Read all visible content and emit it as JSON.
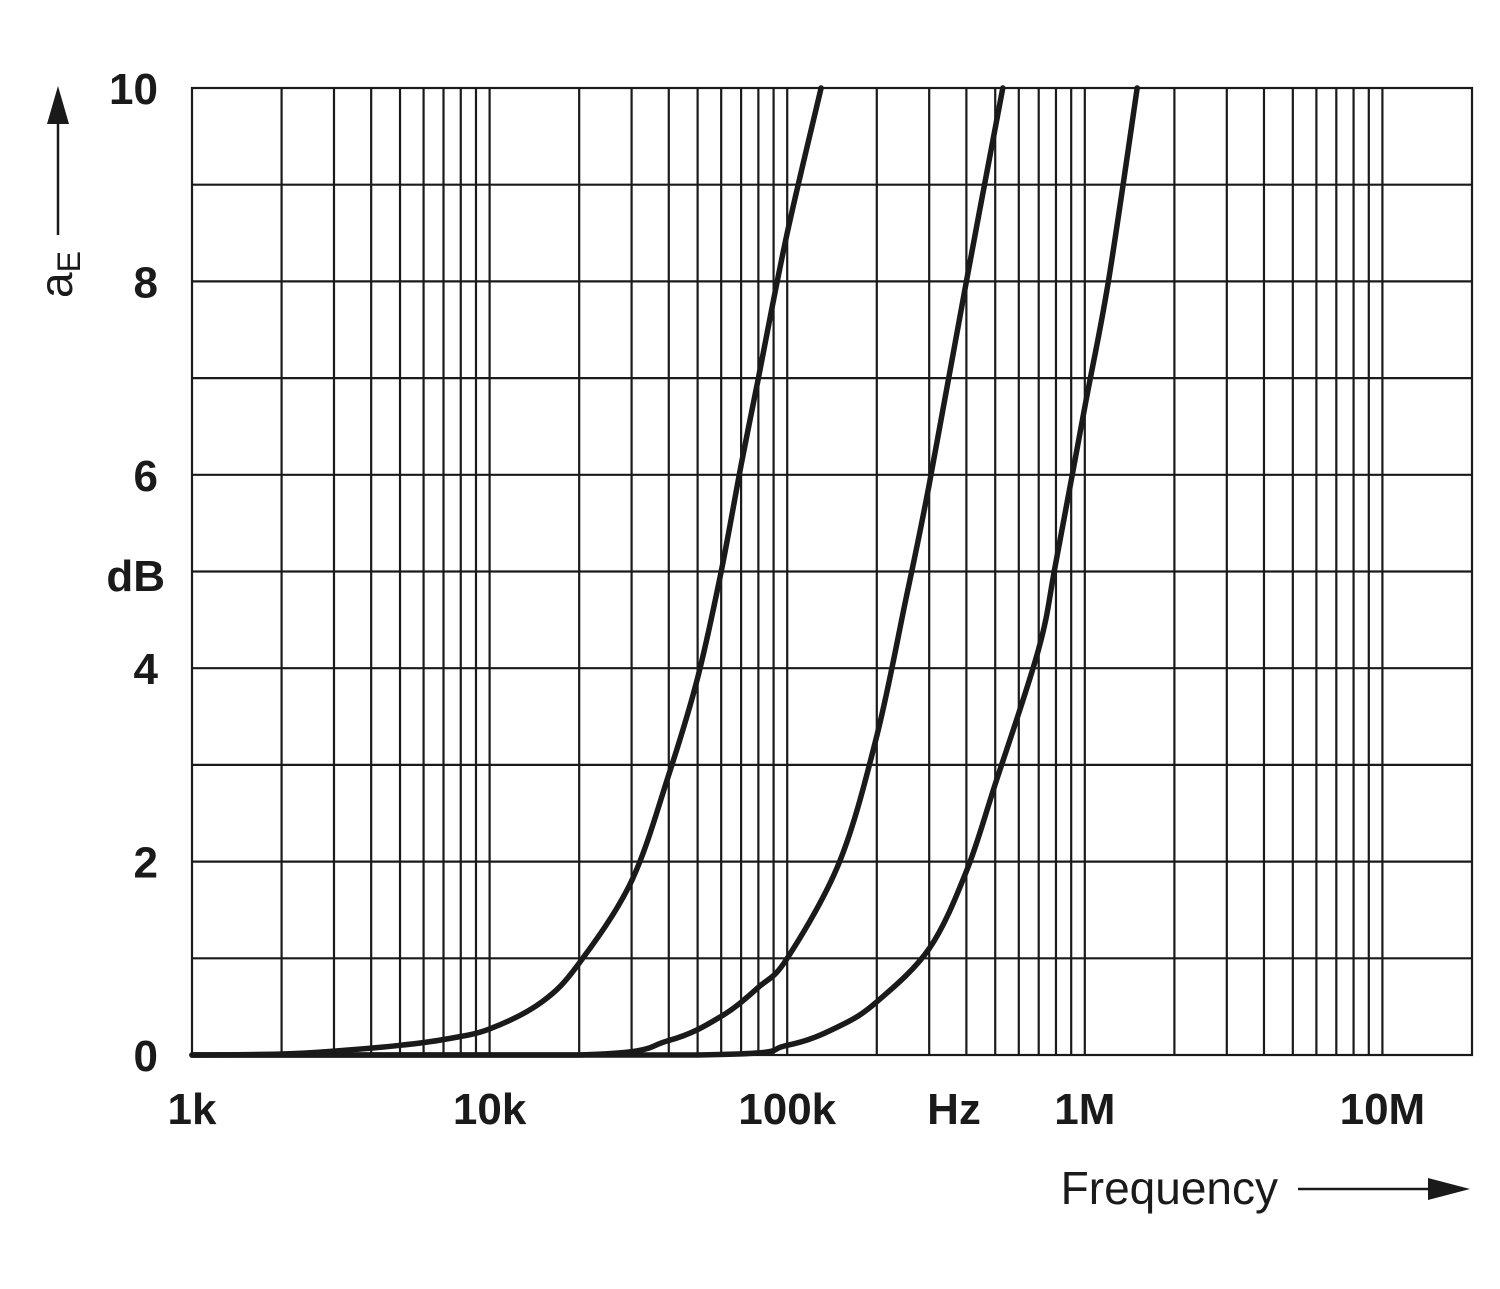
{
  "chart_data": {
    "type": "line",
    "xscale": "log",
    "xlim": [
      1000,
      20000000
    ],
    "ylim": [
      0,
      10
    ],
    "grid": true,
    "xlabel": "Frequency",
    "ylabel": "a",
    "ylabel_sub": "E",
    "y_unit": "dB",
    "x_unit": "Hz",
    "x_ticks": [
      {
        "value": 1000,
        "label": "1k"
      },
      {
        "value": 10000,
        "label": "10k"
      },
      {
        "value": 100000,
        "label": "100k"
      },
      {
        "value": 1000000,
        "label": "1M"
      },
      {
        "value": 10000000,
        "label": "10M"
      }
    ],
    "y_ticks": [
      {
        "value": 0,
        "label": "0"
      },
      {
        "value": 2,
        "label": "2"
      },
      {
        "value": 4,
        "label": "4"
      },
      {
        "value": 6,
        "label": "6"
      },
      {
        "value": 8,
        "label": "8"
      },
      {
        "value": 10,
        "label": "10"
      }
    ],
    "series": [
      {
        "x": [
          1000,
          2000,
          3000,
          5000,
          7000,
          10000,
          15000,
          20000,
          30000,
          40000,
          50000,
          60000,
          70000,
          80000,
          100000,
          130000
        ],
        "values": [
          0.0,
          0.01,
          0.04,
          0.1,
          0.16,
          0.27,
          0.55,
          0.95,
          1.8,
          2.9,
          3.9,
          5.0,
          6.1,
          7.0,
          8.5,
          10.0
        ]
      },
      {
        "x": [
          20000,
          40000,
          60000,
          80000,
          100000,
          150000,
          200000,
          250000,
          300000,
          400000,
          530000
        ],
        "values": [
          0.0,
          0.15,
          0.4,
          0.7,
          1.0,
          2.0,
          3.3,
          4.7,
          5.9,
          8.0,
          10.0
        ]
      },
      {
        "x": [
          50000,
          100000,
          150000,
          200000,
          300000,
          400000,
          500000,
          700000,
          800000,
          1000000,
          1200000,
          1500000
        ],
        "values": [
          0.0,
          0.1,
          0.3,
          0.55,
          1.1,
          1.9,
          2.8,
          4.2,
          5.1,
          6.7,
          8.0,
          10.0
        ]
      }
    ]
  }
}
